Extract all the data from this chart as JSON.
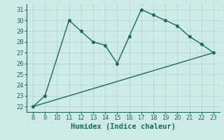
{
  "line1_x": [
    8,
    9,
    11,
    12,
    13,
    14,
    15,
    16,
    17,
    18,
    19,
    20,
    21,
    22,
    23
  ],
  "line1_y": [
    22,
    23,
    30,
    29,
    28,
    27.7,
    26,
    28.5,
    31,
    30.5,
    30,
    29.5,
    28.5,
    27.8,
    27
  ],
  "line2_x": [
    8,
    23
  ],
  "line2_y": [
    22,
    27
  ],
  "color": "#1a6b5a",
  "bg_color": "#ceeae6",
  "grid_color": "#aad4ce",
  "xlabel": "Humidex (Indice chaleur)",
  "ylim": [
    21.5,
    31.5
  ],
  "xlim": [
    7.5,
    23.5
  ],
  "yticks": [
    22,
    23,
    24,
    25,
    26,
    27,
    28,
    29,
    30,
    31
  ],
  "xticks": [
    8,
    9,
    10,
    11,
    12,
    13,
    14,
    15,
    16,
    17,
    18,
    19,
    20,
    21,
    22,
    23
  ],
  "xlabel_fontsize": 7.5,
  "tick_fontsize": 6,
  "linewidth": 1.0,
  "markersize": 2.5
}
